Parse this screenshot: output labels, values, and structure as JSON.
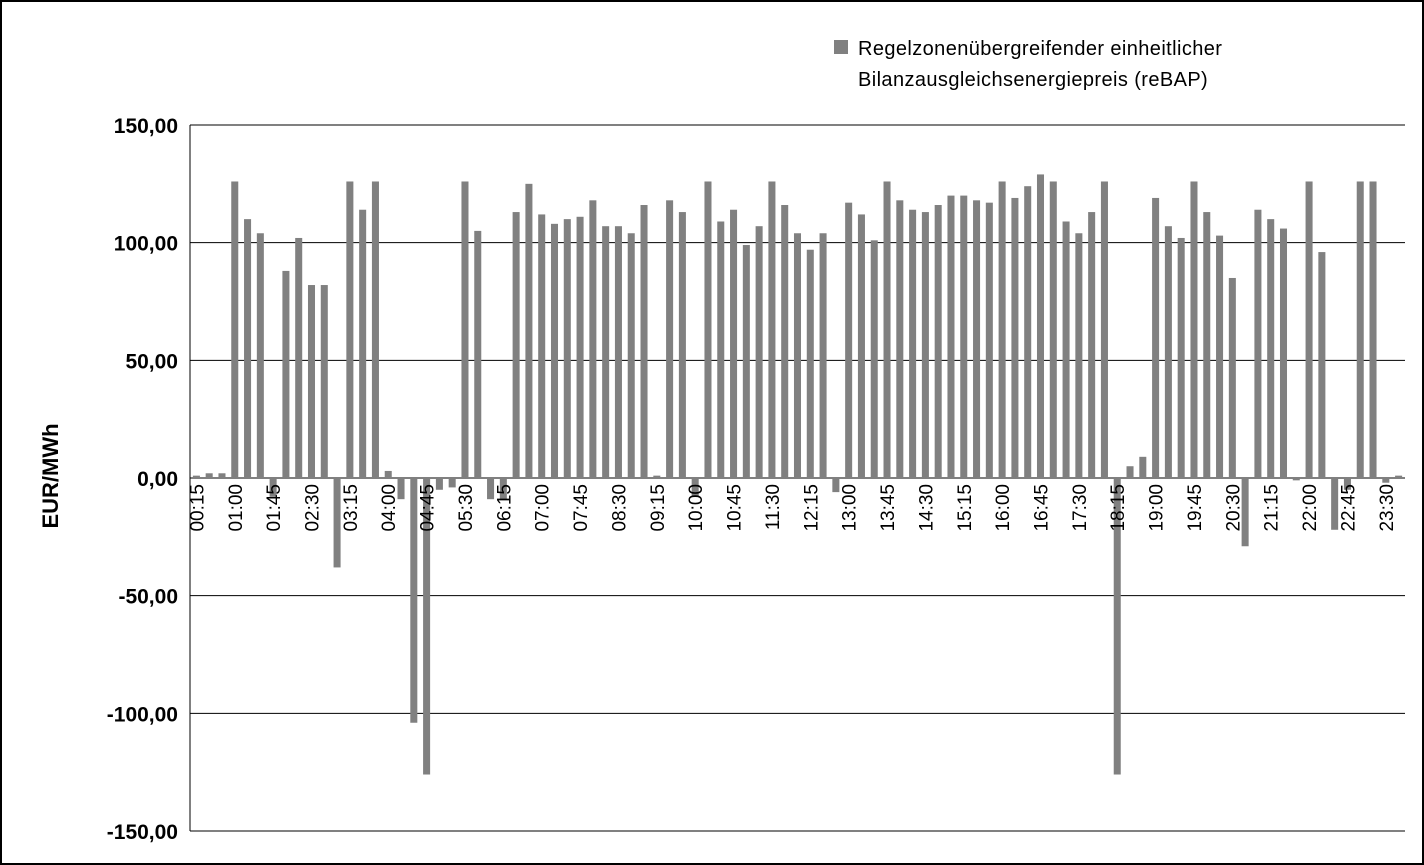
{
  "chart_data": {
    "type": "bar",
    "ylabel": "EUR/MWh",
    "ylim": [
      -150,
      150
    ],
    "ytick_values": [
      150,
      100,
      50,
      0,
      -50,
      -100,
      -150
    ],
    "ytick_labels": [
      "150,00",
      "100,00",
      "50,00",
      "0,00",
      "-50,00",
      "-100,00",
      "-150,00"
    ],
    "grid": true,
    "legend_position": "top-right",
    "colors": {
      "bar": "#808080",
      "grid": "#000000",
      "frame": "#000000"
    },
    "xtick_labels": [
      "00:15",
      "01:00",
      "01:45",
      "02:30",
      "03:15",
      "04:00",
      "04:45",
      "05:30",
      "06:15",
      "07:00",
      "07:45",
      "08:30",
      "09:15",
      "10:00",
      "10:45",
      "11:30",
      "12:15",
      "13:00",
      "13:45",
      "14:30",
      "15:15",
      "16:00",
      "16:45",
      "17:30",
      "18:15",
      "19:00",
      "19:45",
      "20:30",
      "21:15",
      "22:00",
      "22:45",
      "23:30"
    ],
    "series": [
      {
        "name": "Regelzonenübergreifender einheitlicher Bilanzausgleichsenergiepreis (reBAP)",
        "legend_lines": [
          "Regelzonenübergreifender einheitlicher",
          "Bilanzausgleichsenergiepreis (reBAP)"
        ],
        "values": [
          1,
          2,
          2,
          126,
          110,
          104,
          -8,
          88,
          102,
          82,
          82,
          -38,
          126,
          114,
          126,
          3,
          -9,
          -104,
          -126,
          -5,
          -4,
          126,
          105,
          -9,
          -9,
          113,
          125,
          112,
          108,
          110,
          111,
          118,
          107,
          107,
          104,
          116,
          1,
          118,
          113,
          -8,
          126,
          109,
          114,
          99,
          107,
          126,
          116,
          104,
          97,
          104,
          -6,
          117,
          112,
          101,
          126,
          118,
          114,
          113,
          116,
          120,
          120,
          118,
          117,
          126,
          119,
          124,
          129,
          126,
          109,
          104,
          113,
          126,
          -126,
          5,
          9,
          119,
          107,
          102,
          126,
          113,
          103,
          85,
          -29,
          114,
          110,
          106,
          -1,
          126,
          96,
          -22,
          -5,
          126,
          126,
          -2,
          1
        ]
      }
    ]
  }
}
